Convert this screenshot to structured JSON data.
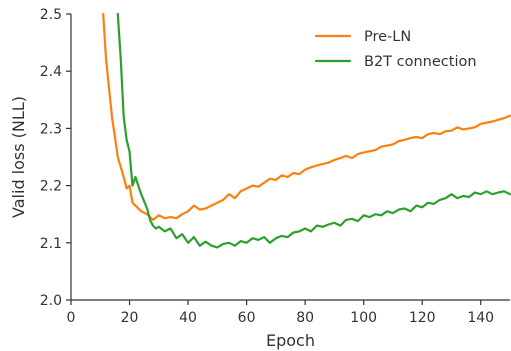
{
  "chart_data": {
    "type": "line",
    "xlabel": "Epoch",
    "ylabel": "Valid loss (NLL)",
    "xlim": [
      0,
      150
    ],
    "ylim": [
      2.0,
      2.5
    ],
    "xticks": [
      0,
      20,
      40,
      60,
      80,
      100,
      120,
      140
    ],
    "yticks": [
      2.0,
      2.1,
      2.2,
      2.3,
      2.4,
      2.5
    ],
    "xtick_labels": [
      "0",
      "20",
      "40",
      "60",
      "80",
      "100",
      "120",
      "140"
    ],
    "ytick_labels": [
      "2.0",
      "2.1",
      "2.2",
      "2.3",
      "2.4",
      "2.5"
    ],
    "grid": false,
    "legend_position": "top-right",
    "series": [
      {
        "name": "Pre-LN",
        "color": "#ff7f0e",
        "x": [
          11,
          12,
          14,
          16,
          18,
          19,
          20,
          21,
          22,
          24,
          26,
          28,
          30,
          32,
          34,
          36,
          38,
          40,
          42,
          44,
          46,
          48,
          50,
          52,
          54,
          56,
          58,
          60,
          62,
          64,
          66,
          68,
          70,
          72,
          74,
          76,
          78,
          80,
          82,
          84,
          86,
          88,
          90,
          92,
          94,
          96,
          98,
          100,
          102,
          104,
          106,
          108,
          110,
          112,
          114,
          116,
          118,
          120,
          122,
          124,
          126,
          128,
          130,
          132,
          134,
          136,
          138,
          140,
          142,
          144,
          146,
          148,
          150
        ],
        "y": [
          2.5,
          2.42,
          2.32,
          2.25,
          2.215,
          2.195,
          2.2,
          2.17,
          2.165,
          2.155,
          2.15,
          2.14,
          2.148,
          2.143,
          2.145,
          2.143,
          2.15,
          2.155,
          2.165,
          2.158,
          2.16,
          2.165,
          2.17,
          2.175,
          2.185,
          2.178,
          2.19,
          2.195,
          2.2,
          2.198,
          2.205,
          2.212,
          2.21,
          2.218,
          2.215,
          2.222,
          2.22,
          2.228,
          2.232,
          2.235,
          2.238,
          2.24,
          2.245,
          2.248,
          2.252,
          2.248,
          2.255,
          2.258,
          2.26,
          2.262,
          2.268,
          2.27,
          2.272,
          2.278,
          2.28,
          2.283,
          2.285,
          2.283,
          2.29,
          2.292,
          2.29,
          2.295,
          2.296,
          2.302,
          2.298,
          2.3,
          2.302,
          2.308,
          2.31,
          2.312,
          2.315,
          2.318,
          2.322
        ]
      },
      {
        "name": "B2T connection",
        "color": "#2ca02c",
        "x": [
          16,
          17,
          18,
          19,
          20,
          21,
          22,
          23,
          24,
          26,
          27,
          28,
          29,
          30,
          32,
          34,
          36,
          38,
          40,
          42,
          44,
          46,
          48,
          50,
          52,
          54,
          56,
          58,
          60,
          62,
          64,
          66,
          68,
          70,
          72,
          74,
          76,
          78,
          80,
          82,
          84,
          86,
          88,
          90,
          92,
          94,
          96,
          98,
          100,
          102,
          104,
          106,
          108,
          110,
          112,
          114,
          116,
          118,
          120,
          122,
          124,
          126,
          128,
          130,
          132,
          134,
          136,
          138,
          140,
          142,
          144,
          146,
          148,
          150
        ],
        "y": [
          2.5,
          2.42,
          2.32,
          2.28,
          2.26,
          2.2,
          2.215,
          2.2,
          2.185,
          2.16,
          2.14,
          2.13,
          2.125,
          2.128,
          2.12,
          2.125,
          2.108,
          2.115,
          2.1,
          2.11,
          2.095,
          2.102,
          2.095,
          2.092,
          2.098,
          2.1,
          2.095,
          2.103,
          2.1,
          2.108,
          2.105,
          2.11,
          2.1,
          2.108,
          2.112,
          2.11,
          2.118,
          2.12,
          2.125,
          2.12,
          2.13,
          2.128,
          2.132,
          2.135,
          2.13,
          2.14,
          2.142,
          2.138,
          2.148,
          2.145,
          2.15,
          2.148,
          2.155,
          2.152,
          2.158,
          2.16,
          2.155,
          2.165,
          2.162,
          2.17,
          2.168,
          2.175,
          2.178,
          2.185,
          2.178,
          2.182,
          2.18,
          2.188,
          2.185,
          2.19,
          2.185,
          2.188,
          2.19,
          2.185
        ]
      }
    ]
  }
}
